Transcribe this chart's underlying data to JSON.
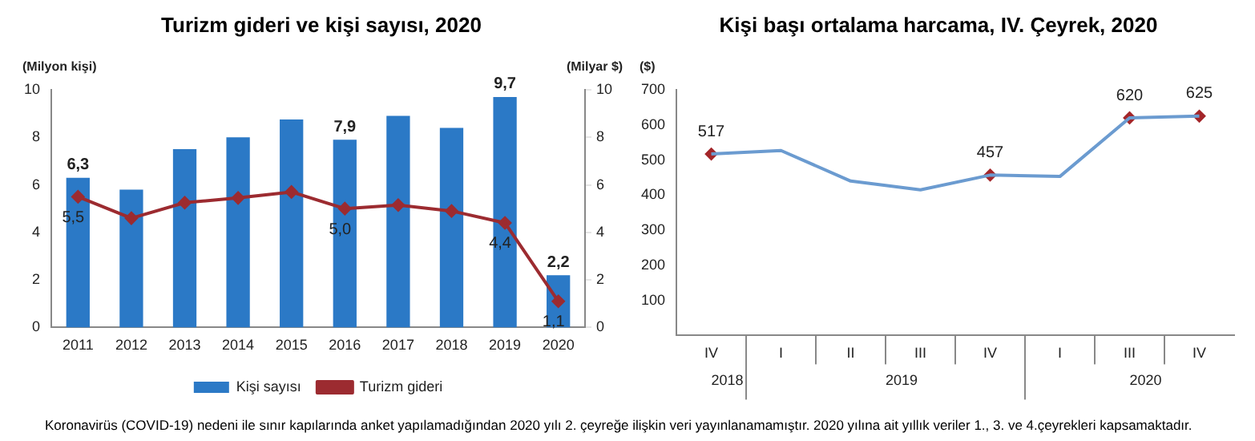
{
  "chart_data": [
    {
      "type": "bar",
      "title": "Turizm gideri ve kişi sayısı, 2020",
      "ylabel": "(Milyon kişi)",
      "y2label": "(Milyar $)",
      "categories": [
        "2011",
        "2012",
        "2013",
        "2014",
        "2015",
        "2016",
        "2017",
        "2018",
        "2019",
        "2020"
      ],
      "series": [
        {
          "name": "Kişi sayısı",
          "color": "#2b79c6",
          "values": [
            6.3,
            5.8,
            7.5,
            8.0,
            8.75,
            7.9,
            8.9,
            8.4,
            9.7,
            2.2
          ],
          "value_labels": [
            "6,3",
            null,
            null,
            null,
            null,
            "7,9",
            null,
            null,
            "9,7",
            "2,2"
          ]
        },
        {
          "name": "Turizm gideri",
          "type": "line",
          "axis": "y2",
          "color": "#9c2b30",
          "marker": "diamond",
          "values": [
            5.5,
            4.6,
            5.25,
            5.45,
            5.7,
            5.0,
            5.15,
            4.9,
            4.4,
            1.1
          ],
          "value_labels": [
            "5,5",
            null,
            null,
            null,
            null,
            "5,0",
            null,
            null,
            "4,4",
            "1,1"
          ]
        }
      ],
      "ylim": [
        0,
        10
      ],
      "yticks": [
        0,
        2,
        4,
        6,
        8,
        10
      ],
      "y2lim": [
        0,
        10
      ],
      "y2ticks": [
        0,
        2,
        4,
        6,
        8,
        10
      ],
      "grid": false,
      "legend": "bottom"
    },
    {
      "type": "line",
      "title": "Kişi başı ortalama harcama, IV. Çeyrek, 2020",
      "ylabel": "($)",
      "categories": [
        "IV",
        "I",
        "II",
        "III",
        "IV",
        "I",
        "III",
        "IV"
      ],
      "series": [
        {
          "color": "#6b9bd0",
          "marker": "none",
          "values": [
            517,
            527,
            440,
            415,
            457,
            453,
            620,
            625
          ]
        },
        {
          "type": "scatter",
          "color": "#a3262a",
          "marker": "diamond",
          "values": [
            517,
            null,
            null,
            null,
            457,
            null,
            620,
            625
          ],
          "value_labels": [
            "517",
            null,
            null,
            null,
            "457",
            null,
            "620",
            "625"
          ]
        }
      ],
      "ylim": [
        0,
        700
      ],
      "yticks": [
        100,
        200,
        300,
        400,
        500,
        600,
        700
      ],
      "grid": false,
      "legend": false,
      "annotations": [
        "2018",
        "2019",
        "2020",
        "Koronavirüs (COVID-19) nedeni ile sınır kapılarında anket yapılamadığından 2020 yılı 2. çeyreğe ilişkin veri yayınlanamamıştır. 2020 yılına  ait yıllık veriler 1., 3. ve 4.çeyrekleri kapsamaktadır."
      ]
    }
  ]
}
